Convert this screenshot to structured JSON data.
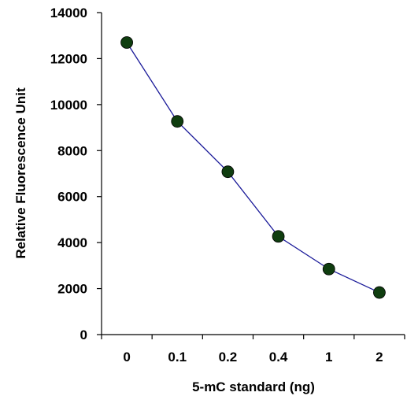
{
  "chart_data": {
    "type": "line",
    "title": "",
    "xlabel": "5-mC standard (ng)",
    "ylabel": "Relative Fluorescence Unit",
    "categories": [
      "0",
      "0.1",
      "0.2",
      "0.4",
      "1",
      "2"
    ],
    "series": [
      {
        "values": [
          12700,
          9270,
          7080,
          4270,
          2850,
          1830
        ]
      }
    ],
    "ylim": [
      0,
      14000
    ],
    "yticks": [
      0,
      2000,
      4000,
      6000,
      8000,
      10000,
      12000,
      14000
    ],
    "ytick_labels": [
      "0",
      "2000",
      "4000",
      "6000",
      "8000",
      "10000",
      "12000",
      "14000"
    ],
    "grid": false,
    "legend": "none",
    "line_color": "#1a1a99",
    "marker_color": "#0f3d0f"
  }
}
